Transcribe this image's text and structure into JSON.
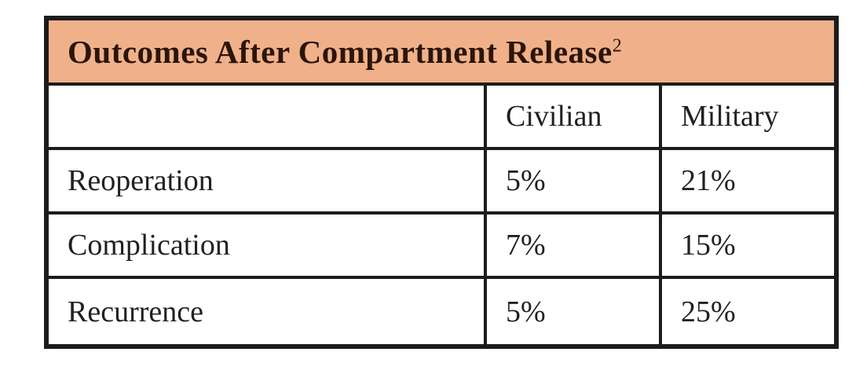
{
  "chart_data": {
    "type": "table",
    "title": "Outcomes After Compartment Release",
    "title_superscript": "2",
    "column_headers": [
      "",
      "Civilian",
      "Military"
    ],
    "rows": [
      [
        "Reoperation",
        "5%",
        "21%"
      ],
      [
        "Complication",
        "7%",
        "15%"
      ],
      [
        "Recurrence",
        "5%",
        "25%"
      ]
    ]
  },
  "colors": {
    "title_background": "#f0b18a",
    "border": "#1c1c1c",
    "title_text": "#2b150a",
    "body_text": "#231f20",
    "page_background": "#ffffff"
  }
}
